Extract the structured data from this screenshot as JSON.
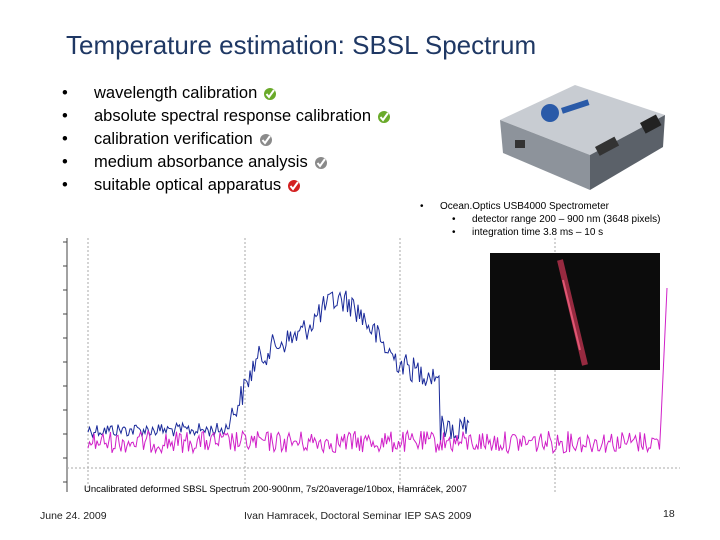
{
  "header": {
    "title": "Temperature estimation: SBSL Spectrum"
  },
  "bullets": [
    "wavelength calibration",
    "absolute spectral response calibration",
    "calibration verification",
    "medium absorbance analysis",
    "suitable optical apparatus"
  ],
  "spectrometer": {
    "name": "Ocean.Optics USB4000 Spectrometer",
    "details": [
      "detector range 200 – 900 nm (3648 pixels)",
      "integration time 3.8 ms – 10 s"
    ]
  },
  "caption": "Uncalibrated deformed SBSL Spectrum 200-900nm, 7s/20average/10box, Hamráček, 2007",
  "footer": {
    "date": "June 24. 2009",
    "author": "Ivan Hamracek, Doctoral Seminar IEP SAS 2009",
    "page": "18"
  }
}
